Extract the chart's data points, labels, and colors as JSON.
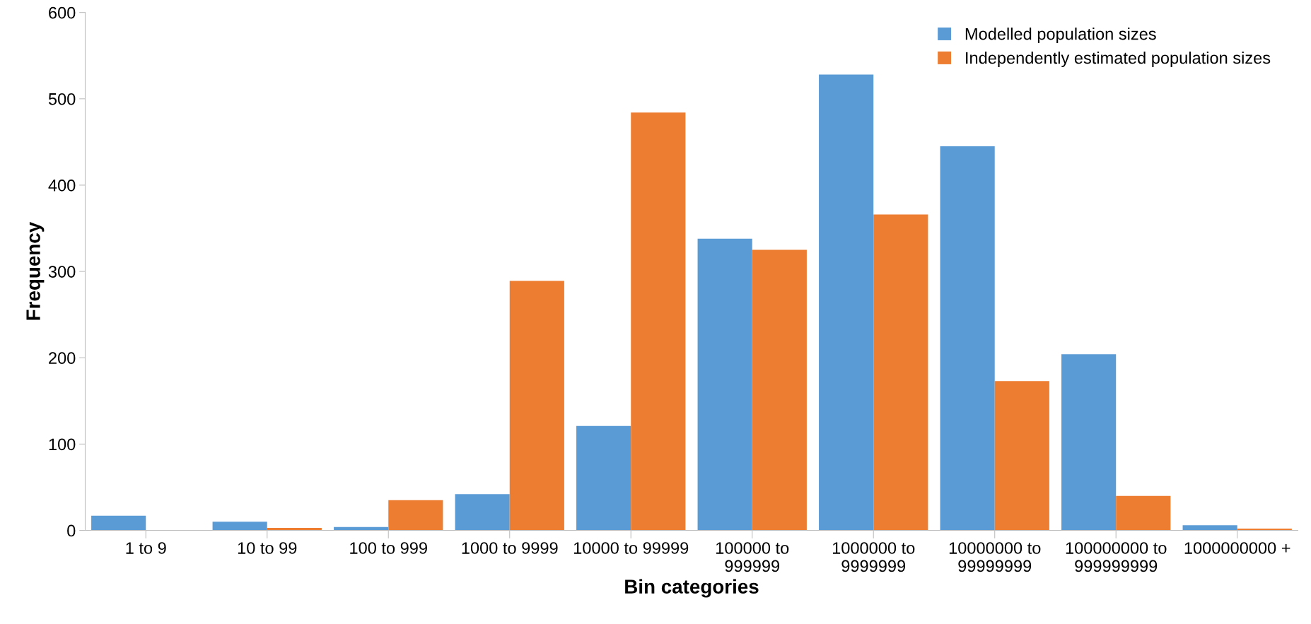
{
  "chart_data": {
    "type": "bar",
    "xlabel": "Bin categories",
    "ylabel": "Frequency",
    "categories": [
      "1 to 9",
      "10 to 99",
      "100 to 999",
      "1000 to 9999",
      "10000 to 99999",
      "100000 to\n999999",
      "1000000 to\n9999999",
      "10000000 to\n99999999",
      "100000000 to\n999999999",
      "1000000000 +"
    ],
    "series": [
      {
        "name": "Modelled population sizes",
        "color": "#5b9bd5",
        "values": [
          17,
          10,
          4,
          42,
          121,
          338,
          528,
          445,
          204,
          6
        ]
      },
      {
        "name": "Independently estimated population sizes",
        "color": "#ed7d31",
        "values": [
          0,
          3,
          35,
          289,
          484,
          325,
          366,
          173,
          40,
          2
        ]
      }
    ],
    "ylim": [
      0,
      600
    ],
    "yticks": [
      0,
      100,
      200,
      300,
      400,
      500,
      600
    ],
    "grid": false,
    "legend": "top right"
  }
}
